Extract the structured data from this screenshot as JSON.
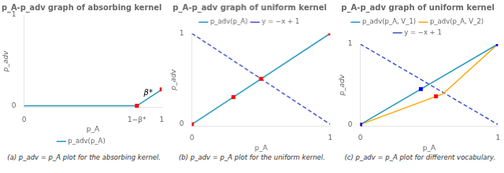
{
  "chart_data": [
    {
      "type": "line",
      "title": "p_A-p_adv graph of absorbing kernel",
      "xlabel": "p_A",
      "ylabel": "p_adv",
      "caption": "(a) p_adv = p_A plot for the absorbing kernel.",
      "series": [
        {
          "name": "p_adv(p_A)",
          "type": "line",
          "color": "#2299bb",
          "line_style": "solid",
          "x": [
            0.0,
            0.82,
            1.0
          ],
          "values": [
            0.0,
            0.0,
            0.18
          ]
        },
        {
          "type": "scatter",
          "marker": "square",
          "color": "red",
          "x": [
            0.82,
            1.0
          ],
          "values": [
            0.0,
            0.18
          ]
        }
      ],
      "annotations": [
        {
          "text": "β*",
          "x": 0.87,
          "y": 0.1
        }
      ],
      "xlim": [
        0,
        1
      ],
      "ylim": [
        -0.02,
        1
      ],
      "xticks": [
        0,
        {
          "value": 0.82,
          "label": "1−β*"
        },
        1
      ],
      "yticks": [
        0,
        1
      ],
      "grid": false,
      "legend": "bottom"
    },
    {
      "type": "line",
      "title": "p_A-p_adv graph of uniform kernel",
      "xlabel": "p_A",
      "ylabel": "p_adv",
      "caption": "(b) p_adv = p_A plot for the uniform kernel.",
      "series": [
        {
          "name": "p_adv(p_A)",
          "type": "line",
          "color": "#2299bb",
          "line_style": "solid",
          "x": [
            0.0,
            1.0
          ],
          "values": [
            0.0,
            1.0
          ]
        },
        {
          "name": "y = −x + 1",
          "type": "line",
          "color": "#4455cc",
          "line_style": "dashed",
          "x": [
            0.0,
            1.0
          ],
          "values": [
            1.0,
            0.0
          ]
        },
        {
          "type": "scatter",
          "marker": "square",
          "color": "red",
          "x": [
            0.0,
            0.3,
            0.5,
            1.0
          ],
          "values": [
            0.0,
            0.3,
            0.5,
            1.0
          ]
        }
      ],
      "xlim": [
        0,
        1
      ],
      "ylim": [
        -0.02,
        1
      ],
      "xticks": [
        0,
        1
      ],
      "yticks": [
        0,
        1
      ],
      "grid": false,
      "legend": "top"
    },
    {
      "type": "line",
      "title": "p_A-p_adv graph of uniform kernel",
      "xlabel": "p_A",
      "ylabel": "p_adv",
      "caption": "(c) p_adv = p_A plot for different vocabulary.",
      "series": [
        {
          "name": "p_adv(p_A, V_1)",
          "type": "line",
          "color": "#2299bb",
          "line_style": "solid",
          "x": [
            0.0,
            1.0
          ],
          "values": [
            0.0,
            1.0
          ]
        },
        {
          "name": "p_adv(p_A, V_2)",
          "type": "line",
          "color": "orange",
          "line_style": "solid",
          "x": [
            0.0,
            0.6,
            1.0
          ],
          "values": [
            0.0,
            0.38,
            1.0
          ]
        },
        {
          "name": "y = −x + 1",
          "type": "line",
          "color": "#4455cc",
          "line_style": "dashed",
          "x": [
            0.0,
            1.0
          ],
          "values": [
            1.0,
            0.0
          ]
        },
        {
          "type": "scatter",
          "marker": "square",
          "color": "blue",
          "x": [
            0.0,
            0.44,
            1.0
          ],
          "values": [
            0.0,
            0.44,
            1.0
          ]
        },
        {
          "type": "scatter",
          "marker": "square",
          "color": "red",
          "x": [
            0.0,
            0.55,
            1.0
          ],
          "values": [
            0.0,
            0.35,
            1.0
          ]
        }
      ],
      "xlim": [
        0,
        1
      ],
      "ylim": [
        -0.02,
        1
      ],
      "xticks": [
        0,
        1
      ],
      "yticks": [
        0,
        1
      ],
      "grid": false,
      "legend": "top"
    }
  ]
}
